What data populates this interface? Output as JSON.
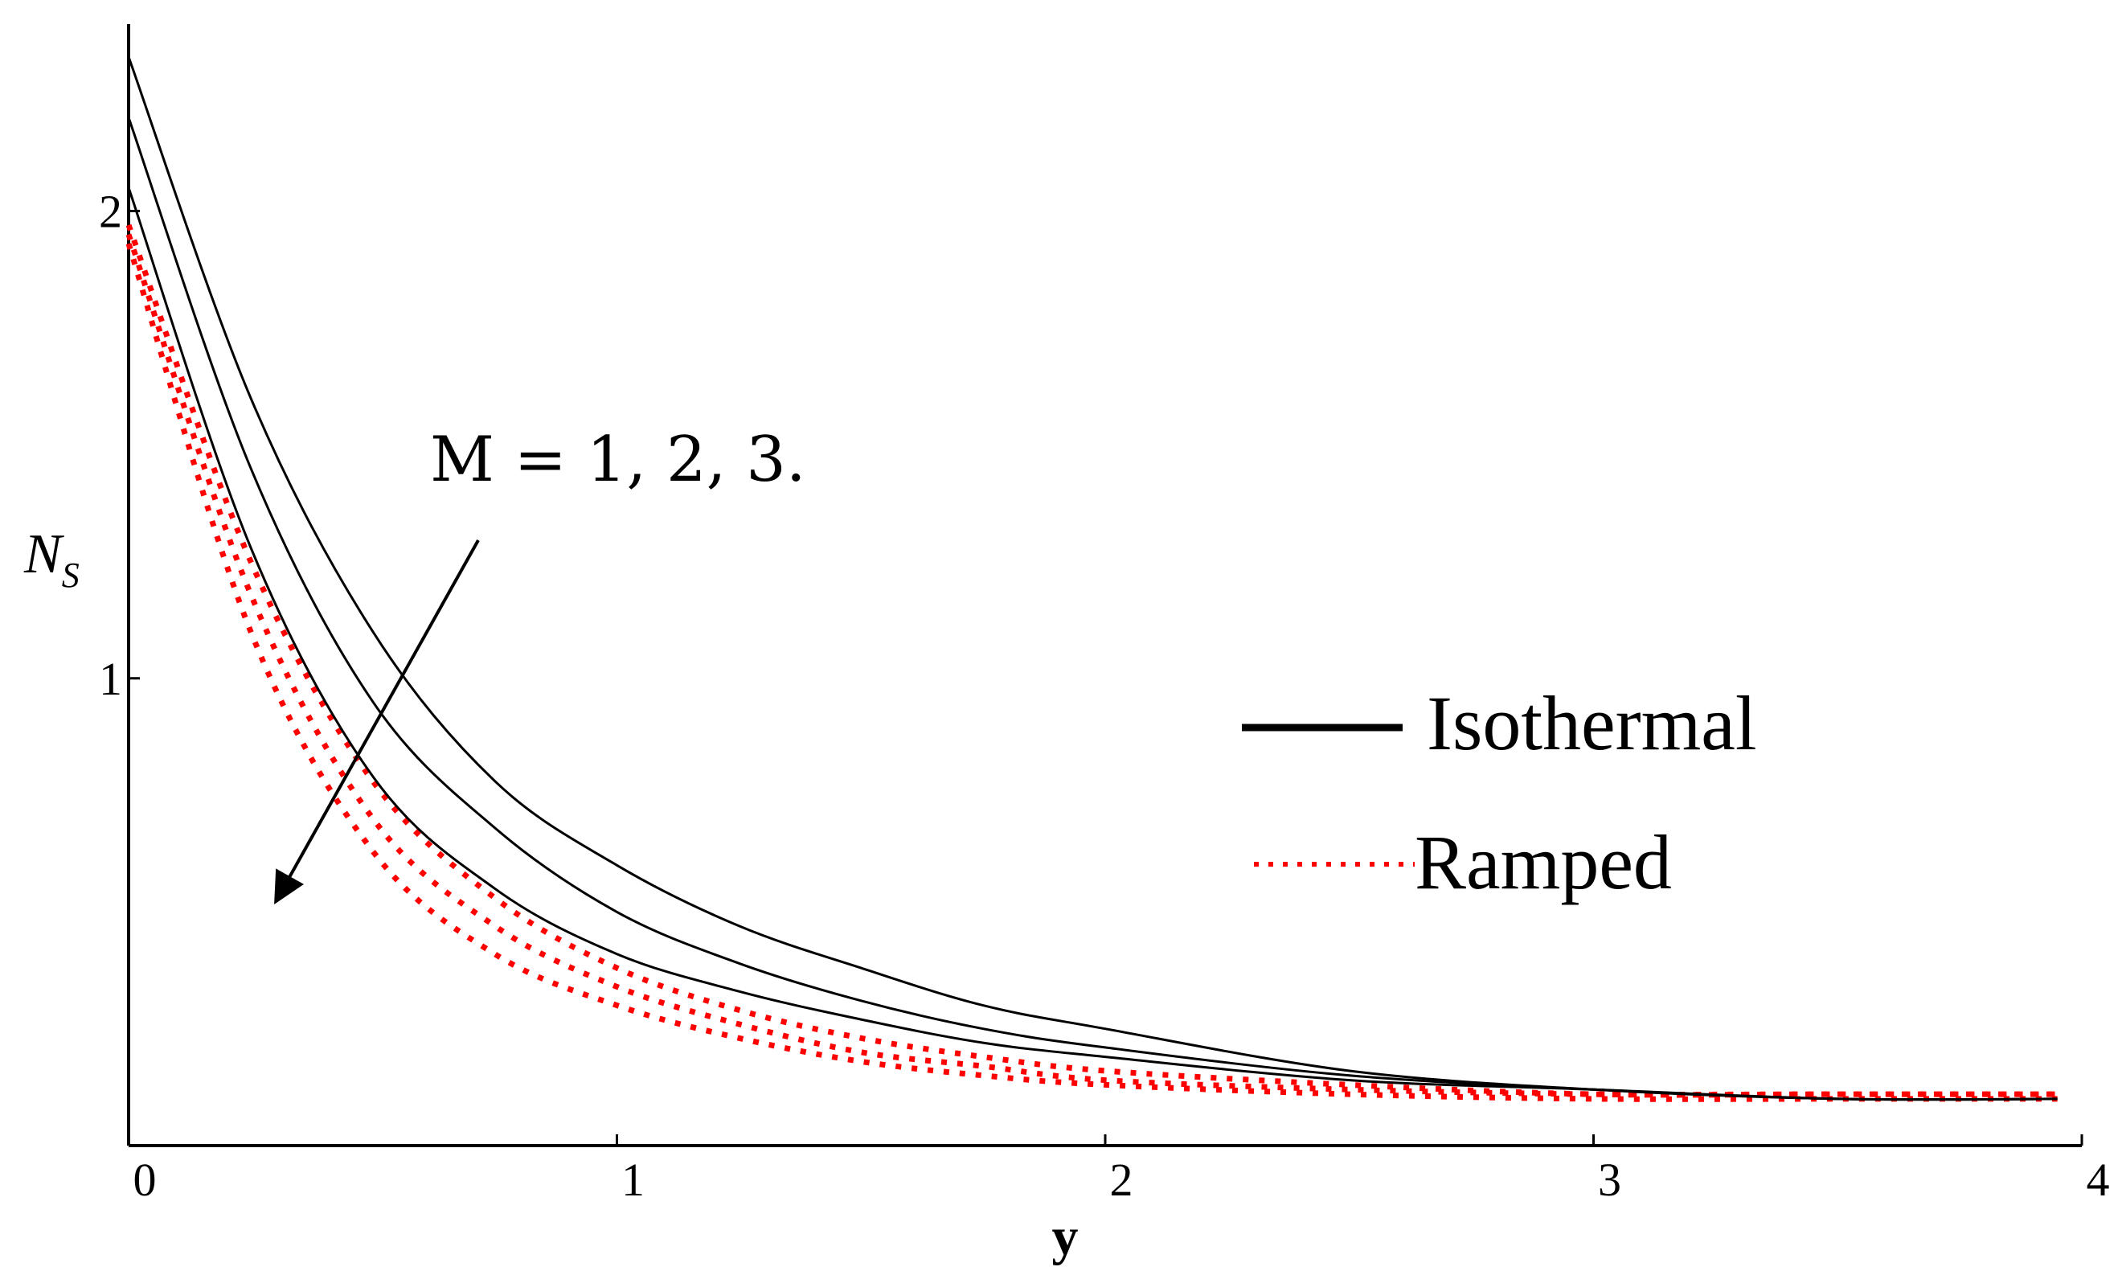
{
  "chart_data": {
    "type": "line",
    "title": "",
    "xlabel": "y",
    "ylabel": "N",
    "ylabel_subscript": "S",
    "xlim": [
      0,
      4
    ],
    "ylim": [
      0,
      2.4
    ],
    "x_ticks": [
      0,
      1,
      2,
      3,
      4
    ],
    "x_tick_labels": [
      "0",
      "1",
      "2",
      "3",
      "4"
    ],
    "y_ticks": [
      1,
      2
    ],
    "y_tick_labels": [
      "1",
      "2"
    ],
    "grid": false,
    "annotation": "M = 1, 2, 3.",
    "legend": [
      {
        "label": "Isothermal",
        "style": "solid",
        "color": "#000000"
      },
      {
        "label": "Ramped",
        "style": "dotted",
        "color": "#ff0000"
      }
    ],
    "series": [
      {
        "name": "Isothermal M=1",
        "group": "Isothermal",
        "M": 1,
        "style": "solid",
        "color": "#000000",
        "x": [
          0,
          0.25,
          0.5,
          0.75,
          1.0,
          1.25,
          1.5,
          1.75,
          2.0,
          2.5,
          3.0,
          3.5,
          3.95
        ],
        "y": [
          2.33,
          1.6,
          1.1,
          0.78,
          0.6,
          0.47,
          0.38,
          0.3,
          0.25,
          0.16,
          0.12,
          0.1,
          0.1
        ]
      },
      {
        "name": "Isothermal M=2",
        "group": "Isothermal",
        "M": 2,
        "style": "solid",
        "color": "#000000",
        "x": [
          0,
          0.25,
          0.5,
          0.75,
          1.0,
          1.25,
          1.5,
          1.75,
          2.0,
          2.5,
          3.0,
          3.5,
          3.95
        ],
        "y": [
          2.2,
          1.45,
          0.95,
          0.68,
          0.5,
          0.39,
          0.31,
          0.25,
          0.21,
          0.15,
          0.12,
          0.1,
          0.1
        ]
      },
      {
        "name": "Isothermal M=3",
        "group": "Isothermal",
        "M": 3,
        "style": "solid",
        "color": "#000000",
        "x": [
          0,
          0.25,
          0.5,
          0.75,
          1.0,
          1.25,
          1.5,
          1.75,
          2.0,
          2.5,
          3.0,
          3.5,
          3.95
        ],
        "y": [
          2.05,
          1.28,
          0.79,
          0.55,
          0.41,
          0.33,
          0.27,
          0.22,
          0.19,
          0.14,
          0.12,
          0.1,
          0.1
        ]
      },
      {
        "name": "Ramped M=1",
        "group": "Ramped",
        "M": 1,
        "style": "dotted",
        "color": "#ff0000",
        "x": [
          0,
          0.25,
          0.5,
          0.75,
          1.0,
          1.25,
          1.5,
          1.75,
          2.0,
          2.5,
          3.0,
          3.5,
          3.95
        ],
        "y": [
          1.97,
          1.25,
          0.78,
          0.53,
          0.38,
          0.29,
          0.23,
          0.19,
          0.16,
          0.13,
          0.11,
          0.11,
          0.11
        ]
      },
      {
        "name": "Ramped M=2",
        "group": "Ramped",
        "M": 2,
        "style": "dotted",
        "color": "#ff0000",
        "x": [
          0,
          0.25,
          0.5,
          0.75,
          1.0,
          1.25,
          1.5,
          1.75,
          2.0,
          2.5,
          3.0,
          3.5,
          3.95
        ],
        "y": [
          1.95,
          1.18,
          0.7,
          0.47,
          0.34,
          0.26,
          0.2,
          0.17,
          0.14,
          0.12,
          0.11,
          0.11,
          0.11
        ]
      },
      {
        "name": "Ramped M=3",
        "group": "Ramped",
        "M": 3,
        "style": "dotted",
        "color": "#ff0000",
        "x": [
          0,
          0.25,
          0.5,
          0.75,
          1.0,
          1.25,
          1.5,
          1.75,
          2.0,
          2.5,
          3.0,
          3.5,
          3.95
        ],
        "y": [
          1.93,
          1.1,
          0.63,
          0.41,
          0.3,
          0.23,
          0.18,
          0.15,
          0.13,
          0.11,
          0.1,
          0.1,
          0.1
        ]
      }
    ]
  }
}
